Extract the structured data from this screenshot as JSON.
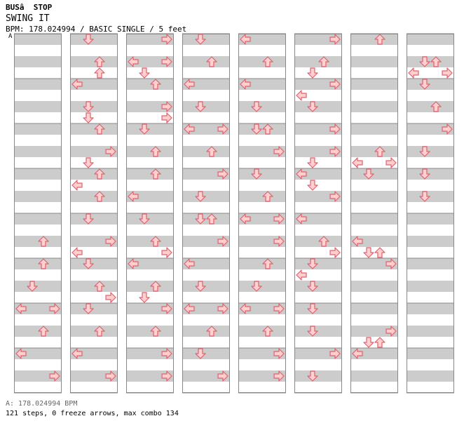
{
  "header": {
    "title": "BUSâ  STOP",
    "song": "SWING IT",
    "info": "BPM: 178.024994 / BASIC SINGLE / 5 feet",
    "bpm_marker": "A"
  },
  "footer": {
    "bpm_line": "A: 178.024994 BPM",
    "stats": "121 steps, 0 freeze arrows, max combo 134"
  },
  "colors": {
    "stripe_dark": "#cccccc",
    "stripe_light": "#ffffff",
    "arrow_fill": "#ffd0d0",
    "arrow_stroke": "#e0606a"
  },
  "chart_data": {
    "type": "table",
    "description_lanes": [
      "left",
      "down",
      "up",
      "right"
    ],
    "rows_per_column": 32,
    "columns": [
      {
        "notes": []
      },
      {
        "notes": [
          [
            0,
            "down"
          ],
          [
            2,
            "up"
          ],
          [
            3,
            "up"
          ],
          [
            4,
            "left"
          ],
          [
            6,
            "down"
          ],
          [
            7,
            "down"
          ],
          [
            8,
            "up"
          ],
          [
            10,
            "right"
          ],
          [
            11,
            "down"
          ],
          [
            12,
            "up"
          ],
          [
            13,
            "left"
          ],
          [
            14,
            "up"
          ],
          [
            16,
            "down"
          ],
          [
            18,
            "right"
          ],
          [
            19,
            "left"
          ],
          [
            20,
            "down"
          ],
          [
            22,
            "up"
          ],
          [
            23,
            "right"
          ],
          [
            24,
            "down"
          ],
          [
            26,
            "up"
          ],
          [
            28,
            "left"
          ],
          [
            30,
            "right"
          ]
        ]
      },
      {
        "notes": [
          [
            0,
            "right"
          ],
          [
            2,
            "left"
          ],
          [
            2,
            "right"
          ],
          [
            3,
            "down"
          ],
          [
            4,
            "up"
          ],
          [
            6,
            "right"
          ],
          [
            7,
            "right"
          ],
          [
            8,
            "down"
          ],
          [
            10,
            "up"
          ],
          [
            12,
            "up"
          ],
          [
            14,
            "left"
          ],
          [
            16,
            "down"
          ],
          [
            18,
            "up"
          ],
          [
            19,
            "right"
          ],
          [
            20,
            "left"
          ],
          [
            22,
            "up"
          ],
          [
            23,
            "down"
          ],
          [
            24,
            "right"
          ],
          [
            26,
            "up"
          ],
          [
            28,
            "right"
          ],
          [
            30,
            "right"
          ]
        ]
      },
      {
        "notes": [
          [
            0,
            "down"
          ],
          [
            2,
            "up"
          ],
          [
            4,
            "left"
          ],
          [
            6,
            "down"
          ],
          [
            8,
            "left"
          ],
          [
            8,
            "right"
          ],
          [
            10,
            "up"
          ],
          [
            12,
            "right"
          ],
          [
            14,
            "down"
          ],
          [
            16,
            "down"
          ],
          [
            16,
            "up"
          ],
          [
            18,
            "right"
          ],
          [
            20,
            "left"
          ],
          [
            22,
            "down"
          ],
          [
            24,
            "left"
          ],
          [
            24,
            "right"
          ],
          [
            26,
            "up"
          ],
          [
            28,
            "down"
          ],
          [
            30,
            "right"
          ]
        ]
      },
      {
        "notes": [
          [
            0,
            "left"
          ],
          [
            2,
            "up"
          ],
          [
            4,
            "left"
          ],
          [
            6,
            "down"
          ],
          [
            8,
            "down"
          ],
          [
            8,
            "up"
          ],
          [
            10,
            "right"
          ],
          [
            12,
            "down"
          ],
          [
            14,
            "up"
          ],
          [
            16,
            "left"
          ],
          [
            16,
            "right"
          ],
          [
            18,
            "right"
          ],
          [
            20,
            "up"
          ],
          [
            22,
            "down"
          ],
          [
            24,
            "left"
          ],
          [
            24,
            "right"
          ],
          [
            26,
            "up"
          ],
          [
            28,
            "right"
          ],
          [
            30,
            "right"
          ]
        ]
      },
      {
        "notes": [
          [
            0,
            "right"
          ],
          [
            2,
            "up"
          ],
          [
            3,
            "down"
          ],
          [
            4,
            "right"
          ],
          [
            5,
            "left"
          ],
          [
            6,
            "down"
          ],
          [
            8,
            "right"
          ],
          [
            10,
            "right"
          ],
          [
            11,
            "down"
          ],
          [
            12,
            "left"
          ],
          [
            13,
            "down"
          ],
          [
            14,
            "right"
          ],
          [
            16,
            "left"
          ],
          [
            18,
            "up"
          ],
          [
            19,
            "right"
          ],
          [
            20,
            "down"
          ],
          [
            21,
            "left"
          ],
          [
            22,
            "down"
          ],
          [
            24,
            "down"
          ],
          [
            26,
            "down"
          ],
          [
            28,
            "right"
          ],
          [
            30,
            "down"
          ]
        ]
      },
      {
        "notes": [
          [
            0,
            "up"
          ],
          [
            10,
            "up"
          ],
          [
            11,
            "left"
          ],
          [
            11,
            "right"
          ],
          [
            12,
            "down"
          ],
          [
            18,
            "left"
          ],
          [
            19,
            "down"
          ],
          [
            19,
            "up"
          ],
          [
            20,
            "right"
          ],
          [
            26,
            "right"
          ],
          [
            27,
            "down"
          ],
          [
            27,
            "up"
          ],
          [
            28,
            "left"
          ]
        ]
      },
      {
        "notes": [
          [
            2,
            "down"
          ],
          [
            2,
            "up"
          ],
          [
            3,
            "left"
          ],
          [
            3,
            "right"
          ],
          [
            4,
            "down"
          ],
          [
            6,
            "up"
          ],
          [
            8,
            "right"
          ],
          [
            10,
            "down"
          ],
          [
            12,
            "down"
          ],
          [
            14,
            "down"
          ]
        ]
      }
    ],
    "first_column_notes": [
      [
        18,
        "up"
      ],
      [
        20,
        "up"
      ],
      [
        22,
        "down"
      ],
      [
        24,
        "left"
      ],
      [
        24,
        "right"
      ],
      [
        26,
        "up"
      ],
      [
        28,
        "left"
      ],
      [
        30,
        "right"
      ]
    ]
  }
}
